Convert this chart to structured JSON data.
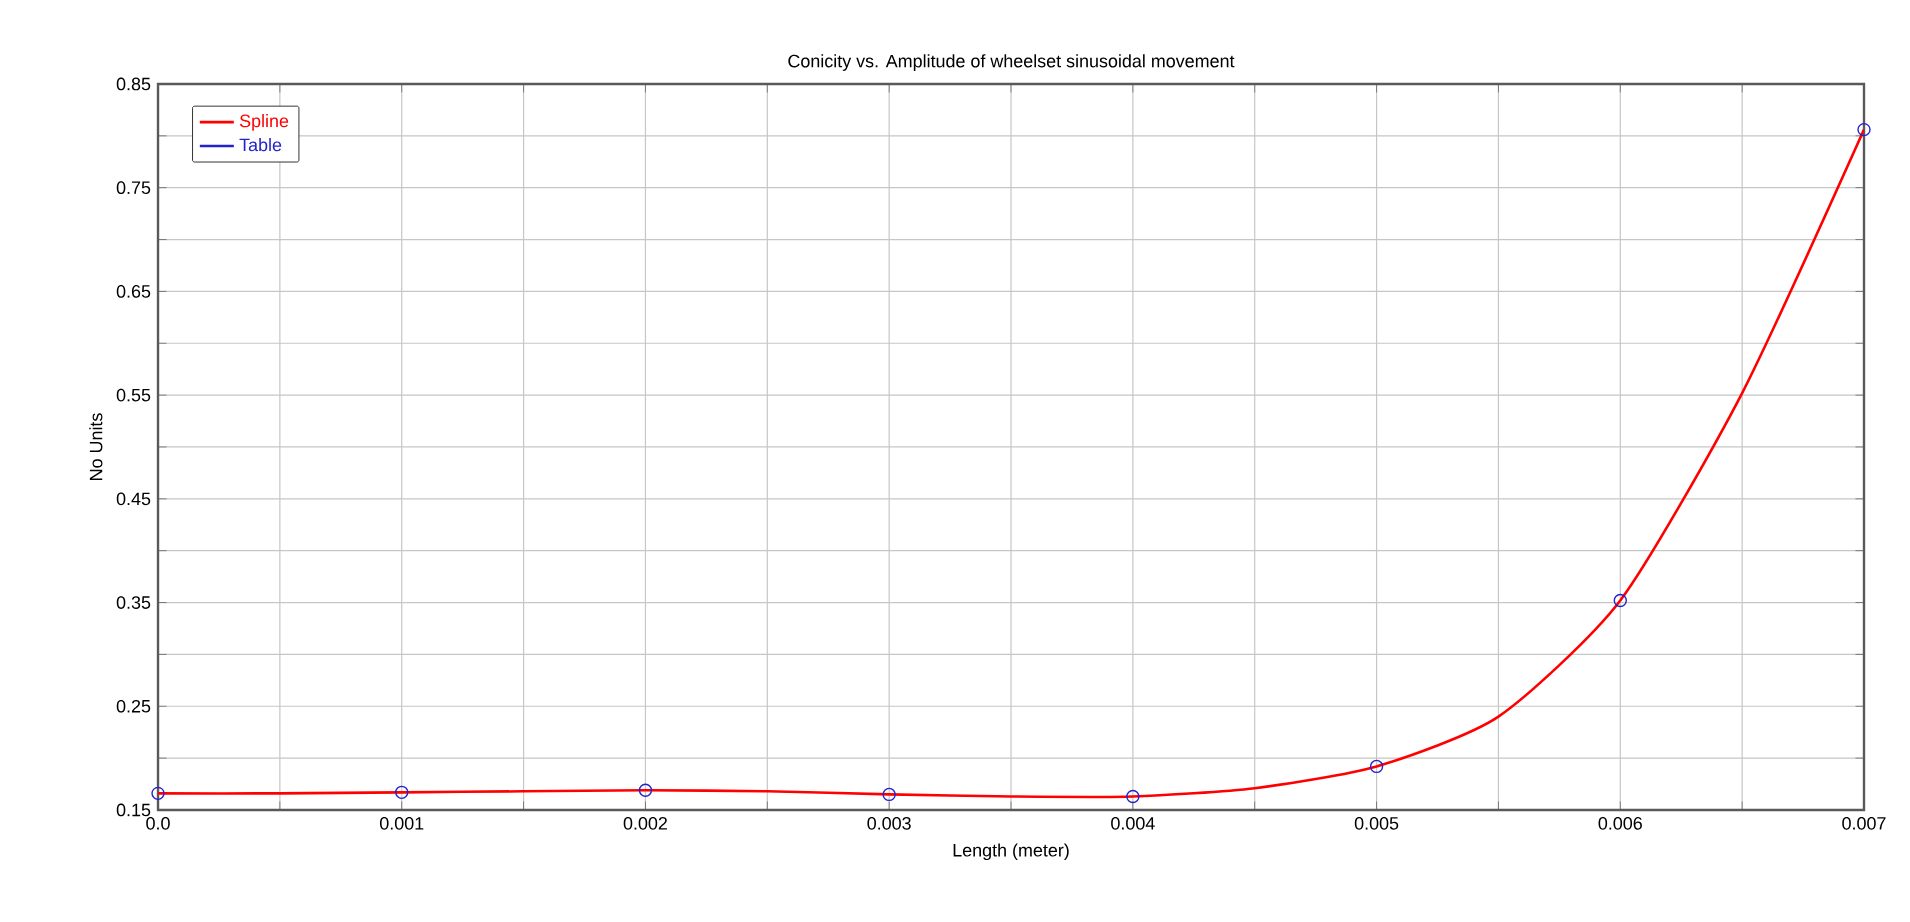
{
  "chart_data": {
    "type": "line",
    "title": "Conicity  vs. Amplitude of wheelset sinusoidal movement",
    "xlabel": "Length (meter)",
    "ylabel": "No Units",
    "xlim": [
      0,
      0.007
    ],
    "ylim": [
      0.15,
      0.85
    ],
    "xticks": [
      {
        "value": 0,
        "label": "0.0"
      },
      {
        "value": 0.0005,
        "label": null
      },
      0.001,
      {
        "value": 0.0015,
        "label": null
      },
      0.002,
      {
        "value": 0.0025,
        "label": null
      },
      0.003,
      {
        "value": 0.0035,
        "label": null
      },
      0.004,
      {
        "value": 0.0045,
        "label": null
      },
      0.005,
      {
        "value": 0.0055,
        "label": null
      },
      0.006,
      {
        "value": 0.0065,
        "label": null
      },
      0.007
    ],
    "yticks": [
      0.15,
      {
        "value": 0.2,
        "label": null
      },
      0.25,
      {
        "value": 0.3,
        "label": null
      },
      0.35,
      {
        "value": 0.4,
        "label": null
      },
      0.45,
      {
        "value": 0.5,
        "label": null
      },
      0.55,
      {
        "value": 0.6,
        "label": null
      },
      0.65,
      {
        "value": 0.7,
        "label": null
      },
      0.75,
      {
        "value": 0.8,
        "label": null
      },
      0.85
    ],
    "grid": true,
    "legend": "top left",
    "series": [
      {
        "name": "Spline",
        "color": "#ff0000",
        "marker": "none",
        "x": [
          0,
          0.0005,
          0.001,
          0.0015,
          0.002,
          0.0025,
          0.003,
          0.0035,
          0.004,
          0.0045,
          0.005,
          0.0055,
          0.006,
          0.0065,
          0.007
        ],
        "values": [
          0.166,
          0.166,
          0.167,
          0.168,
          0.169,
          0.168,
          0.165,
          0.163,
          0.163,
          0.171,
          0.192,
          0.24,
          0.352,
          0.552,
          0.806
        ]
      },
      {
        "name": "Table",
        "type": "scatter",
        "color": "#2222cc",
        "marker": "circle",
        "x": [
          0,
          0.001,
          0.002,
          0.003,
          0.004,
          0.005,
          0.006,
          0.007
        ],
        "values": [
          0.166,
          0.167,
          0.169,
          0.165,
          0.163,
          0.192,
          0.352,
          0.806
        ]
      }
    ]
  }
}
